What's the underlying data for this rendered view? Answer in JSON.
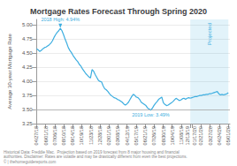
{
  "chart_data": {
    "type": "line",
    "title": "Mortgage Rates Forecast Through Spring 2020",
    "ylabel": "Average 30-year Mortgage Rate",
    "footnote": "Historical Data: Freddie Mac.  Projection based on 2019 forecast from 8 major housing and financial\nauthorities. Disclaimer: Rates are volatile and may be drastically different from even the best projections.\n© | thehomeguidereports.com",
    "series": [
      {
        "color": "#3daee0",
        "x": [
          0,
          1,
          2,
          3,
          4,
          5,
          6,
          7,
          8,
          9,
          10,
          11,
          12,
          13,
          14,
          15,
          16,
          17,
          18,
          19,
          20,
          21,
          22,
          23,
          24,
          25,
          26,
          27,
          28,
          29,
          30,
          31,
          32,
          33,
          34,
          35,
          36,
          37,
          38,
          39,
          40,
          41,
          42,
          43,
          44,
          45,
          46,
          47,
          48,
          49,
          50,
          51,
          52,
          53,
          54,
          55,
          56,
          57,
          58,
          59,
          60,
          61,
          62,
          63,
          64,
          65,
          66,
          67,
          68,
          69,
          70,
          71,
          72,
          73,
          74,
          75,
          76,
          77,
          78,
          79,
          80,
          81,
          82,
          83,
          84,
          85,
          86,
          87,
          88,
          89,
          90,
          91,
          92,
          93,
          94,
          95,
          96,
          97
        ],
        "values": [
          4.58,
          4.56,
          4.53,
          4.55,
          4.58,
          4.6,
          4.61,
          4.63,
          4.65,
          4.68,
          4.72,
          4.78,
          4.83,
          4.87,
          4.9,
          4.94,
          4.9,
          4.83,
          4.75,
          4.68,
          4.6,
          4.55,
          4.51,
          4.46,
          4.42,
          4.38,
          4.35,
          4.3,
          4.27,
          4.22,
          4.18,
          4.14,
          4.11,
          4.08,
          4.06,
          4.21,
          4.18,
          4.12,
          4.07,
          4.02,
          4.0,
          3.99,
          3.92,
          3.87,
          3.85,
          3.82,
          3.78,
          3.75,
          3.73,
          3.71,
          3.7,
          3.68,
          3.67,
          3.65,
          3.63,
          3.6,
          3.58,
          3.6,
          3.63,
          3.68,
          3.73,
          3.77,
          3.75,
          3.72,
          3.71,
          3.68,
          3.63,
          3.61,
          3.59,
          3.57,
          3.53,
          3.51,
          3.49,
          3.52,
          3.57,
          3.61,
          3.64,
          3.68,
          3.7,
          3.72,
          3.62,
          3.59,
          3.57,
          3.58,
          3.6,
          3.62,
          3.64,
          3.67,
          3.7,
          3.68,
          3.66,
          3.67,
          3.69,
          3.7,
          3.68,
          3.7,
          3.71,
          3.7
        ]
      },
      {
        "color": "#3daee0",
        "x": [
          97,
          98,
          99,
          100,
          101,
          102,
          103,
          104,
          105,
          106,
          107,
          108,
          109,
          110,
          111,
          112,
          113,
          114,
          115,
          116,
          117,
          118,
          119,
          120,
          121
        ],
        "values": [
          3.7,
          3.71,
          3.72,
          3.73,
          3.73,
          3.74,
          3.75,
          3.75,
          3.76,
          3.76,
          3.77,
          3.77,
          3.78,
          3.78,
          3.79,
          3.8,
          3.81,
          3.82,
          3.78,
          3.76,
          3.77,
          3.76,
          3.77,
          3.78,
          3.8
        ]
      }
    ],
    "xlim": [
      -1,
      122
    ],
    "xticks": [
      {
        "value": 0,
        "label": "04/27/18"
      },
      {
        "value": 5.705882352941177,
        "label": "06/01/18"
      },
      {
        "value": 11.411764705882353,
        "label": "07/06/18"
      },
      {
        "value": 17.11764705882353,
        "label": "08/10/18"
      },
      {
        "value": 22.823529411764707,
        "label": "09/14/18"
      },
      {
        "value": 28.529411764705884,
        "label": "10/19/18"
      },
      {
        "value": 34.23529411764706,
        "label": "11/23/18"
      },
      {
        "value": 39.94117647058824,
        "label": "12/28/18"
      },
      {
        "value": 45.64705882352941,
        "label": "02/01/19"
      },
      {
        "value": 51.35294117647059,
        "label": "03/08/19"
      },
      {
        "value": 57.05882352941177,
        "label": "04/12/19"
      },
      {
        "value": 62.76470588235294,
        "label": "05/17/19"
      },
      {
        "value": 68.47058823529412,
        "label": "06/21/19"
      },
      {
        "value": 74.17647058823529,
        "label": "07/26/19"
      },
      {
        "value": 79.88235294117646,
        "label": "08/30/19"
      },
      {
        "value": 85.58823529411765,
        "label": "10/04/19"
      },
      {
        "value": 91.29411764705883,
        "label": "11/08/19"
      },
      {
        "value": 97,
        "label": "12/13/19"
      },
      {
        "value": 98,
        "label": "01/17/20"
      },
      {
        "value": 103.75,
        "label": "02/21/20"
      },
      {
        "value": 109.5,
        "label": "03/27/20"
      },
      {
        "value": 115.25,
        "label": "04/24/20"
      },
      {
        "value": 121,
        "label": "05/01/20"
      }
    ],
    "ylim": [
      3.25,
      5.1
    ],
    "yticks": [
      3.25,
      {
        "value": 3.5,
        "label": "3.50"
      },
      3.75,
      {
        "value": 4,
        "label": "4.00"
      },
      4.25,
      {
        "value": 4.5,
        "label": "4.50"
      },
      4.75,
      {
        "value": 5,
        "label": "5.00"
      }
    ],
    "grid": true,
    "reference_line": 3.49,
    "annotations": [
      {
        "text": "2018 High: 4.94%",
        "x": 15,
        "y": 4.94,
        "marker": "arrow"
      },
      {
        "text": "2019 Low: 3.49%",
        "x": 72,
        "y": 3.49
      }
    ],
    "shaded": {
      "label": "Projected",
      "x": [
        97,
        121
      ]
    }
  }
}
